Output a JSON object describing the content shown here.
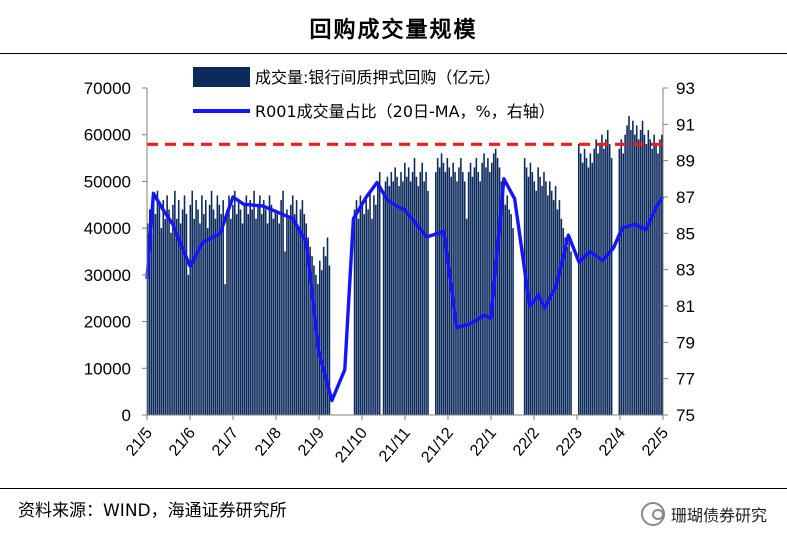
{
  "title": "回购成交量规模",
  "source": "资料来源：WIND，海通证券研究所",
  "watermark": "珊瑚债券研究",
  "watermark_icon": "wechat-icon",
  "colors": {
    "bars": "#0d2a5c",
    "line": "#1414ff",
    "ref": "#ee1c1c",
    "axis": "#808080"
  },
  "chart_data": {
    "type": "bar+line",
    "left_axis": {
      "ylim": [
        0,
        70000
      ],
      "ticks": [
        "0",
        "10000",
        "20000",
        "30000",
        "40000",
        "50000",
        "60000",
        "70000"
      ]
    },
    "right_axis": {
      "ylim": [
        75,
        93
      ],
      "ticks": [
        "75",
        "77",
        "79",
        "81",
        "83",
        "85",
        "87",
        "89",
        "91",
        "93"
      ]
    },
    "x_ticks": [
      "21/5",
      "21/6",
      "21/7",
      "21/8",
      "21/9",
      "21/10",
      "21/11",
      "21/12",
      "22/1",
      "22/2",
      "22/3",
      "22/4",
      "22/5"
    ],
    "legend": [
      {
        "label": "成交量:银行间质押式回购（亿元）",
        "type": "bar",
        "color": "#0d2a5c"
      },
      {
        "label": "R001成交量占比（20日-MA，%，右轴）",
        "type": "line",
        "color": "#1414ff"
      }
    ],
    "reference_line": {
      "axis": "right",
      "value": 89.9,
      "style": "dashed",
      "color": "#ee1c1c"
    },
    "series": [
      {
        "name": "成交量:银行间质押式回购（亿元）",
        "type": "bar",
        "axis": "left",
        "x_start": "21/5",
        "x_end": "22/5",
        "values": [
          41000,
          44000,
          39000,
          46000,
          43000,
          48000,
          45000,
          40000,
          46000,
          42000,
          47000,
          44000,
          39000,
          45000,
          48000,
          42000,
          46000,
          41000,
          44000,
          47000,
          43000,
          30000,
          45000,
          48000,
          42000,
          46000,
          44000,
          41000,
          47000,
          43000,
          46000,
          40000,
          45000,
          48000,
          44000,
          42000,
          47000,
          45000,
          43000,
          46000,
          28000,
          44000,
          47000,
          42000,
          45000,
          48000,
          43000,
          46000,
          44000,
          41000,
          45000,
          47000,
          43000,
          46000,
          44000,
          48000,
          42000,
          45000,
          47000,
          43000,
          46000,
          44000,
          41000,
          47000,
          45000,
          42000,
          44000,
          43000,
          41000,
          46000,
          48000,
          35000,
          44000,
          42000,
          45000,
          47000,
          43000,
          46000,
          40000,
          44000,
          46000,
          43000,
          41000,
          38000,
          36000,
          34000,
          32000,
          30000,
          28000,
          33000,
          31000,
          36000,
          34000,
          38000,
          32000,
          0,
          0,
          0,
          0,
          0,
          0,
          0,
          0,
          0,
          0,
          0,
          0,
          44000,
          46000,
          42000,
          47000,
          45000,
          43000,
          46000,
          44000,
          48000,
          42000,
          47000,
          45000,
          49000,
          52000,
          0,
          48000,
          50000,
          51000,
          49000,
          52000,
          50000,
          53000,
          51000,
          49000,
          52000,
          50000,
          54000,
          51000,
          53000,
          50000,
          52000,
          55000,
          51000,
          49000,
          52000,
          54000,
          50000,
          52000,
          48000,
          0,
          0,
          0,
          52000,
          55000,
          53000,
          56000,
          54000,
          52000,
          55000,
          53000,
          51000,
          54000,
          52000,
          50000,
          53000,
          55000,
          52000,
          50000,
          42000,
          52000,
          54000,
          51000,
          53000,
          55000,
          52000,
          50000,
          54000,
          56000,
          53000,
          55000,
          52000,
          54000,
          56000,
          57000,
          55000,
          53000,
          50000,
          48000,
          45000,
          47000,
          44000,
          43000,
          40000,
          0,
          0,
          0,
          0,
          0,
          55000,
          53000,
          51000,
          54000,
          52000,
          50000,
          48000,
          53000,
          51000,
          49000,
          52000,
          50000,
          47000,
          50000,
          48000,
          46000,
          49000,
          44000,
          46000,
          42000,
          40000,
          38000,
          36000,
          37000,
          35000,
          0,
          0,
          0,
          58000,
          56000,
          54000,
          57000,
          55000,
          53000,
          56000,
          54000,
          57000,
          59000,
          56000,
          58000,
          60000,
          57000,
          59000,
          61000,
          58000,
          55000,
          0,
          0,
          0,
          57000,
          59000,
          56000,
          60000,
          62000,
          64000,
          61000,
          63000,
          60000,
          62000,
          59000,
          61000,
          63000,
          60000,
          58000,
          61000,
          59000,
          57000,
          60000,
          58000,
          56000,
          59000,
          60000
        ]
      },
      {
        "name": "R001成交量占比（20日-MA，%，右轴）",
        "type": "line",
        "axis": "right",
        "x": [
          0,
          0.15,
          0.4,
          0.6,
          1.0,
          1.3,
          1.7,
          2.0,
          2.25,
          2.7,
          3.0,
          3.4,
          3.7,
          4.0,
          4.3,
          4.6,
          4.8,
          5.1,
          5.35,
          5.6,
          5.8,
          6.0,
          6.5,
          6.9,
          7.2,
          7.5,
          7.85,
          8.0,
          8.3,
          8.55,
          8.9,
          9.1,
          9.25,
          9.5,
          9.8,
          10.05,
          10.3,
          10.6,
          10.85,
          11.05,
          11.35,
          11.6,
          11.85,
          12.0
        ],
        "values": [
          82.5,
          87.2,
          86.2,
          85.5,
          83.2,
          84.5,
          85.0,
          87.0,
          86.6,
          86.5,
          86.2,
          85.8,
          84.5,
          78.5,
          75.8,
          77.5,
          85.8,
          87.0,
          87.8,
          86.8,
          86.5,
          86.3,
          84.8,
          85.1,
          79.8,
          80.0,
          80.5,
          80.3,
          88.0,
          86.9,
          81.0,
          81.6,
          80.9,
          82.0,
          84.9,
          83.4,
          84.0,
          83.5,
          84.2,
          85.3,
          85.5,
          85.2,
          86.5,
          87.0
        ]
      }
    ]
  }
}
